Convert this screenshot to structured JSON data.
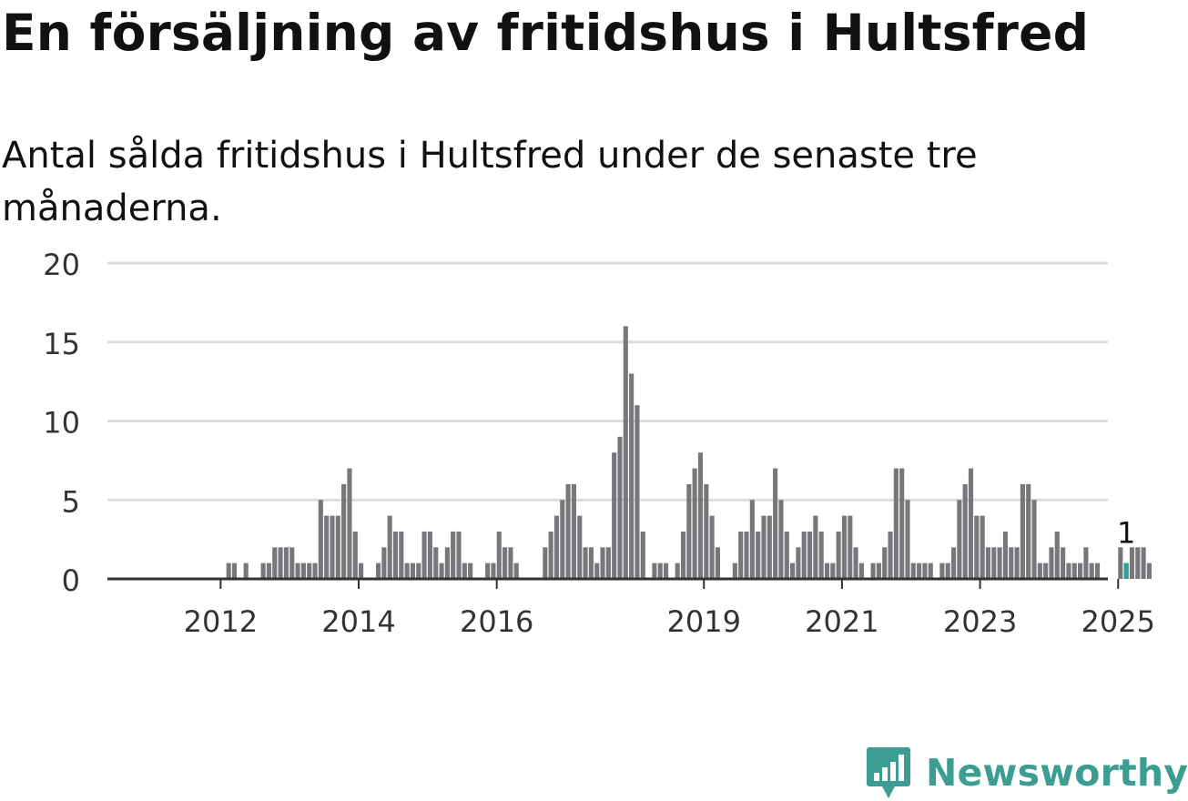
{
  "title": "En försäljning av fritidshus i Hultsfred",
  "subtitle": "Antal sålda fritidshus i Hultsfred under de senaste tre månaderna.",
  "brand": {
    "name": "Newsworthy",
    "color": "#3c9d93",
    "icon": "newsworthy-chart-bubble-icon"
  },
  "chart_data": {
    "type": "bar",
    "start": "2011-01",
    "x_tick_labels": [
      {
        "label": "2012",
        "index": 12
      },
      {
        "label": "2014",
        "index": 36
      },
      {
        "label": "2016",
        "index": 60
      },
      {
        "label": "2019",
        "index": 96
      },
      {
        "label": "2021",
        "index": 120
      },
      {
        "label": "2023",
        "index": 144
      },
      {
        "label": "2025",
        "index": 168
      }
    ],
    "values": [
      0,
      0,
      0,
      0,
      0,
      0,
      0,
      0,
      0,
      0,
      0,
      0,
      0,
      1,
      1,
      0,
      1,
      0,
      0,
      1,
      1,
      2,
      2,
      2,
      2,
      1,
      1,
      1,
      1,
      5,
      4,
      4,
      4,
      6,
      7,
      3,
      1,
      0,
      0,
      1,
      2,
      4,
      3,
      3,
      1,
      1,
      1,
      3,
      3,
      2,
      1,
      2,
      3,
      3,
      1,
      1,
      0,
      0,
      1,
      1,
      3,
      2,
      2,
      1,
      0,
      0,
      0,
      0,
      2,
      3,
      4,
      5,
      6,
      6,
      4,
      2,
      2,
      1,
      2,
      2,
      8,
      9,
      16,
      13,
      11,
      3,
      0,
      1,
      1,
      1,
      0,
      1,
      3,
      6,
      7,
      8,
      6,
      4,
      2,
      0,
      0,
      1,
      3,
      3,
      5,
      3,
      4,
      4,
      7,
      5,
      3,
      1,
      2,
      3,
      3,
      4,
      3,
      1,
      1,
      3,
      4,
      4,
      2,
      1,
      0,
      1,
      1,
      2,
      3,
      7,
      7,
      5,
      1,
      1,
      1,
      1,
      0,
      1,
      1,
      2,
      5,
      6,
      7,
      4,
      4,
      2,
      2,
      2,
      3,
      2,
      2,
      6,
      6,
      5,
      1,
      1,
      2,
      3,
      2,
      1,
      1,
      1,
      2,
      1,
      1,
      0,
      0,
      0,
      2,
      1,
      2,
      2,
      2,
      1
    ],
    "highlight_index": 169,
    "highlight_label": "1",
    "y_ticks": [
      0,
      5,
      10,
      15,
      20
    ],
    "ylim": [
      0,
      20
    ],
    "grid": true,
    "colors": {
      "bar": "#77767b",
      "highlight": "#2aa198",
      "grid": "#dcdcdc",
      "axis": "#333333"
    }
  }
}
